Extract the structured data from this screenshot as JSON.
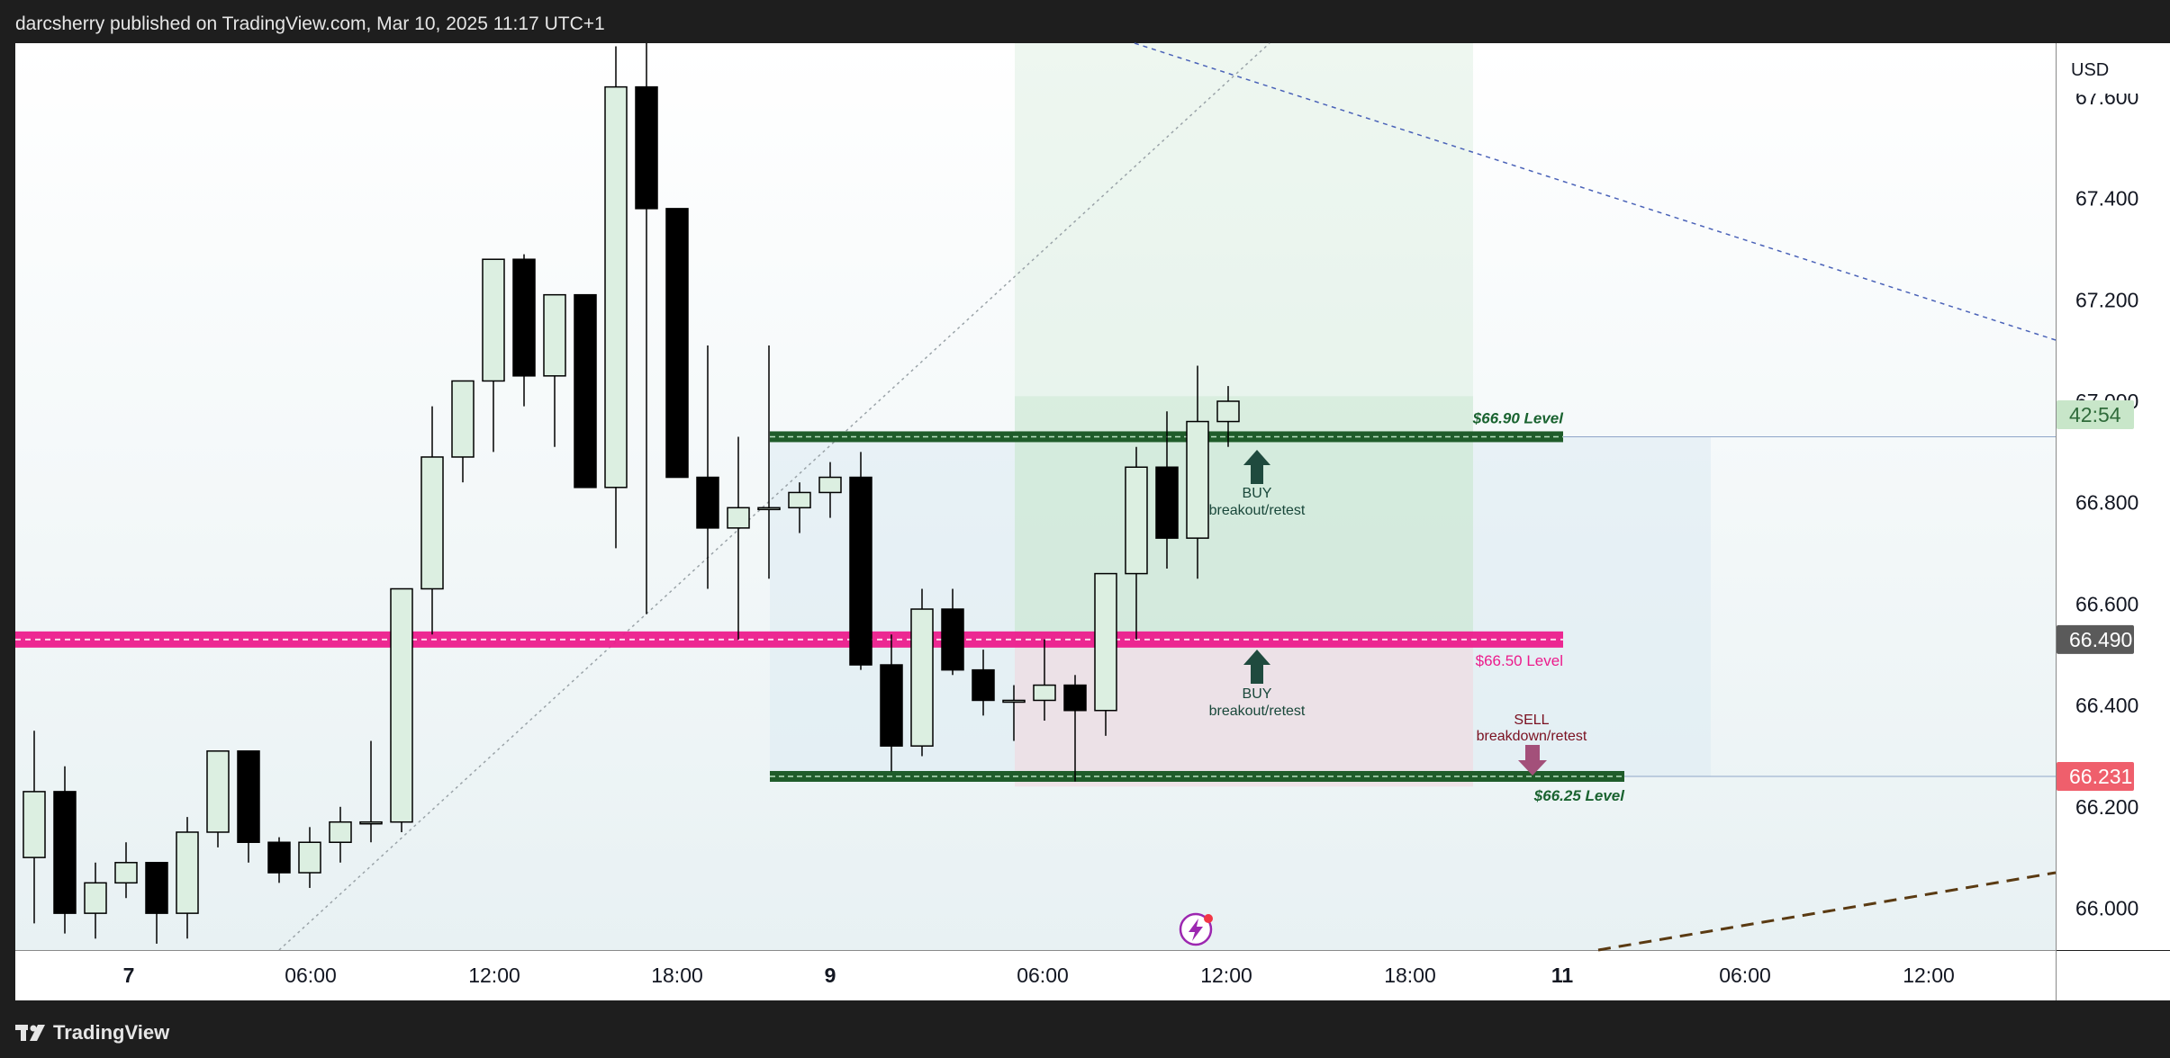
{
  "header": {
    "published_text": "darcsherry published on TradingView.com, Mar 10, 2025 11:17 UTC+1"
  },
  "footer": {
    "brand": "TradingView"
  },
  "colors": {
    "bull_fill": "#dcefe1",
    "bear_fill": "#000000",
    "magenta": "#ec1c8c",
    "green_level": "#1f5c2a",
    "green_text": "#1a6330",
    "buy_text": "#19473a",
    "sell_text": "#7a1020",
    "sell_arrow": "#a3507a",
    "last_price_bg": "#ef5f6c",
    "countdown_bg": "#c8e6c9",
    "magenta_price_bg": "#5a5a5a"
  },
  "chart_data": {
    "type": "candlestick",
    "currency": "USD",
    "ylim": [
      65.94,
      67.7
    ],
    "y_ticks": [
      "67.600",
      "67.400",
      "67.200",
      "67.000",
      "66.800",
      "66.600",
      "66.400",
      "66.200",
      "66.000"
    ],
    "x_ticks": [
      "7",
      "06:00",
      "12:00",
      "18:00",
      "9",
      "06:00",
      "12:00",
      "18:00",
      "11",
      "06:00",
      "12:00"
    ],
    "candles": [
      {
        "o": 66.1,
        "h": 66.35,
        "l": 65.97,
        "c": 66.23
      },
      {
        "o": 66.23,
        "h": 66.28,
        "l": 65.95,
        "c": 65.99
      },
      {
        "o": 65.99,
        "h": 66.09,
        "l": 65.94,
        "c": 66.05
      },
      {
        "o": 66.05,
        "h": 66.13,
        "l": 66.02,
        "c": 66.09
      },
      {
        "o": 66.09,
        "h": 66.09,
        "l": 65.93,
        "c": 65.99
      },
      {
        "o": 65.99,
        "h": 66.18,
        "l": 65.94,
        "c": 66.15
      },
      {
        "o": 66.15,
        "h": 66.31,
        "l": 66.12,
        "c": 66.31
      },
      {
        "o": 66.31,
        "h": 66.31,
        "l": 66.09,
        "c": 66.13
      },
      {
        "o": 66.13,
        "h": 66.14,
        "l": 66.05,
        "c": 66.07
      },
      {
        "o": 66.07,
        "h": 66.16,
        "l": 66.04,
        "c": 66.13
      },
      {
        "o": 66.13,
        "h": 66.2,
        "l": 66.09,
        "c": 66.17
      },
      {
        "o": 66.17,
        "h": 66.33,
        "l": 66.13,
        "c": 66.17
      },
      {
        "o": 66.17,
        "h": 66.63,
        "l": 66.15,
        "c": 66.63
      },
      {
        "o": 66.63,
        "h": 66.99,
        "l": 66.54,
        "c": 66.89
      },
      {
        "o": 66.89,
        "h": 67.04,
        "l": 66.84,
        "c": 67.04
      },
      {
        "o": 67.04,
        "h": 67.28,
        "l": 66.9,
        "c": 67.28
      },
      {
        "o": 67.28,
        "h": 67.29,
        "l": 66.99,
        "c": 67.05
      },
      {
        "o": 67.05,
        "h": 67.21,
        "l": 66.91,
        "c": 67.21
      },
      {
        "o": 67.21,
        "h": 67.21,
        "l": 66.83,
        "c": 66.83
      },
      {
        "o": 66.83,
        "h": 67.7,
        "l": 66.71,
        "c": 67.62
      },
      {
        "o": 67.62,
        "h": 67.73,
        "l": 66.58,
        "c": 67.38
      },
      {
        "o": 67.38,
        "h": 67.38,
        "l": 66.85,
        "c": 66.85
      },
      {
        "o": 66.85,
        "h": 67.11,
        "l": 66.63,
        "c": 66.75
      },
      {
        "o": 66.75,
        "h": 66.93,
        "l": 66.53,
        "c": 66.79
      },
      {
        "o": 66.79,
        "h": 67.11,
        "l": 66.65,
        "c": 66.79
      },
      {
        "o": 66.79,
        "h": 66.84,
        "l": 66.74,
        "c": 66.82
      },
      {
        "o": 66.82,
        "h": 66.88,
        "l": 66.77,
        "c": 66.85
      },
      {
        "o": 66.85,
        "h": 66.9,
        "l": 66.47,
        "c": 66.48
      },
      {
        "o": 66.48,
        "h": 66.54,
        "l": 66.27,
        "c": 66.32
      },
      {
        "o": 66.32,
        "h": 66.63,
        "l": 66.3,
        "c": 66.59
      },
      {
        "o": 66.59,
        "h": 66.63,
        "l": 66.46,
        "c": 66.47
      },
      {
        "o": 66.47,
        "h": 66.51,
        "l": 66.38,
        "c": 66.41
      },
      {
        "o": 66.41,
        "h": 66.44,
        "l": 66.33,
        "c": 66.41
      },
      {
        "o": 66.41,
        "h": 66.53,
        "l": 66.37,
        "c": 66.44
      },
      {
        "o": 66.44,
        "h": 66.46,
        "l": 66.25,
        "c": 66.39
      },
      {
        "o": 66.39,
        "h": 66.66,
        "l": 66.34,
        "c": 66.66
      },
      {
        "o": 66.66,
        "h": 66.91,
        "l": 66.53,
        "c": 66.87
      },
      {
        "o": 66.87,
        "h": 66.98,
        "l": 66.67,
        "c": 66.73
      },
      {
        "o": 66.73,
        "h": 67.07,
        "l": 66.65,
        "c": 66.96
      },
      {
        "o": 66.96,
        "h": 67.03,
        "l": 66.91,
        "c": 67.0
      }
    ],
    "levels": [
      {
        "price": 66.93,
        "label": "$66.90 Level",
        "kind": "green"
      },
      {
        "price": 66.53,
        "label": "$66.50 Level",
        "kind": "magenta"
      },
      {
        "price": 66.26,
        "label": "$66.25 Level",
        "kind": "green"
      }
    ],
    "price_labels": [
      {
        "text": "42:54",
        "price": 67.0,
        "kind": "countdown"
      },
      {
        "text": "66.490",
        "price": 66.53,
        "kind": "magenta"
      },
      {
        "text": "66.231",
        "price": 66.26,
        "kind": "last"
      }
    ]
  },
  "annotations": {
    "buy_upper_line1": "BUY",
    "buy_upper_line2": "breakout/retest",
    "buy_lower_line1": "BUY",
    "buy_lower_line2": "breakout/retest",
    "sell_line1": "SELL",
    "sell_line2": "breakdown/retest"
  }
}
